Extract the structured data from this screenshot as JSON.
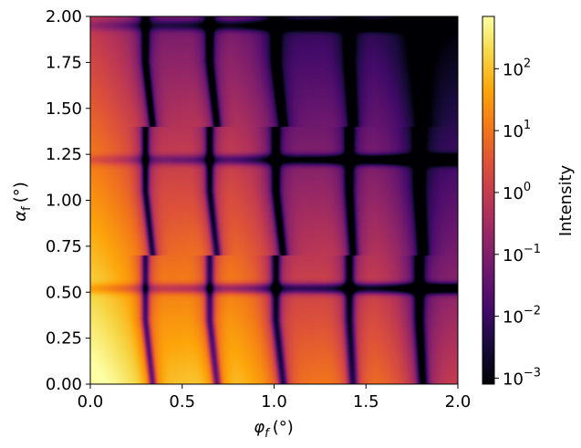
{
  "chart_data": {
    "type": "heatmap",
    "title": "",
    "xlabel": {
      "main": "φ",
      "sub": "f",
      "unit": "(°)"
    },
    "ylabel": {
      "main": "α",
      "sub": "f",
      "unit": "(°)"
    },
    "xlim": [
      0.0,
      2.0
    ],
    "ylim": [
      0.0,
      2.0
    ],
    "x_ticks": [
      "0.0",
      "0.5",
      "1.0",
      "1.5",
      "2.0"
    ],
    "y_ticks": [
      "0.00",
      "0.25",
      "0.50",
      "0.75",
      "1.00",
      "1.25",
      "1.50",
      "1.75",
      "2.00"
    ],
    "colormap": "inferno",
    "color_scale": "log",
    "color_range": [
      0.0008,
      700
    ],
    "colorbar_label": "Intensity",
    "colorbar_ticks": [
      {
        "base": "10",
        "exp": "−3"
      },
      {
        "base": "10",
        "exp": "−2"
      },
      {
        "base": "10",
        "exp": "−1"
      },
      {
        "base": "10",
        "exp": "0"
      },
      {
        "base": "10",
        "exp": "1"
      },
      {
        "base": "10",
        "exp": "2"
      }
    ],
    "phi_minima": [
      0.34,
      0.69,
      1.05,
      1.43,
      1.81
    ],
    "alpha_minima": [
      0.52,
      1.22,
      1.95
    ],
    "peak": {
      "phi": 0.0,
      "alpha": 0.1,
      "intensity": 700
    }
  }
}
